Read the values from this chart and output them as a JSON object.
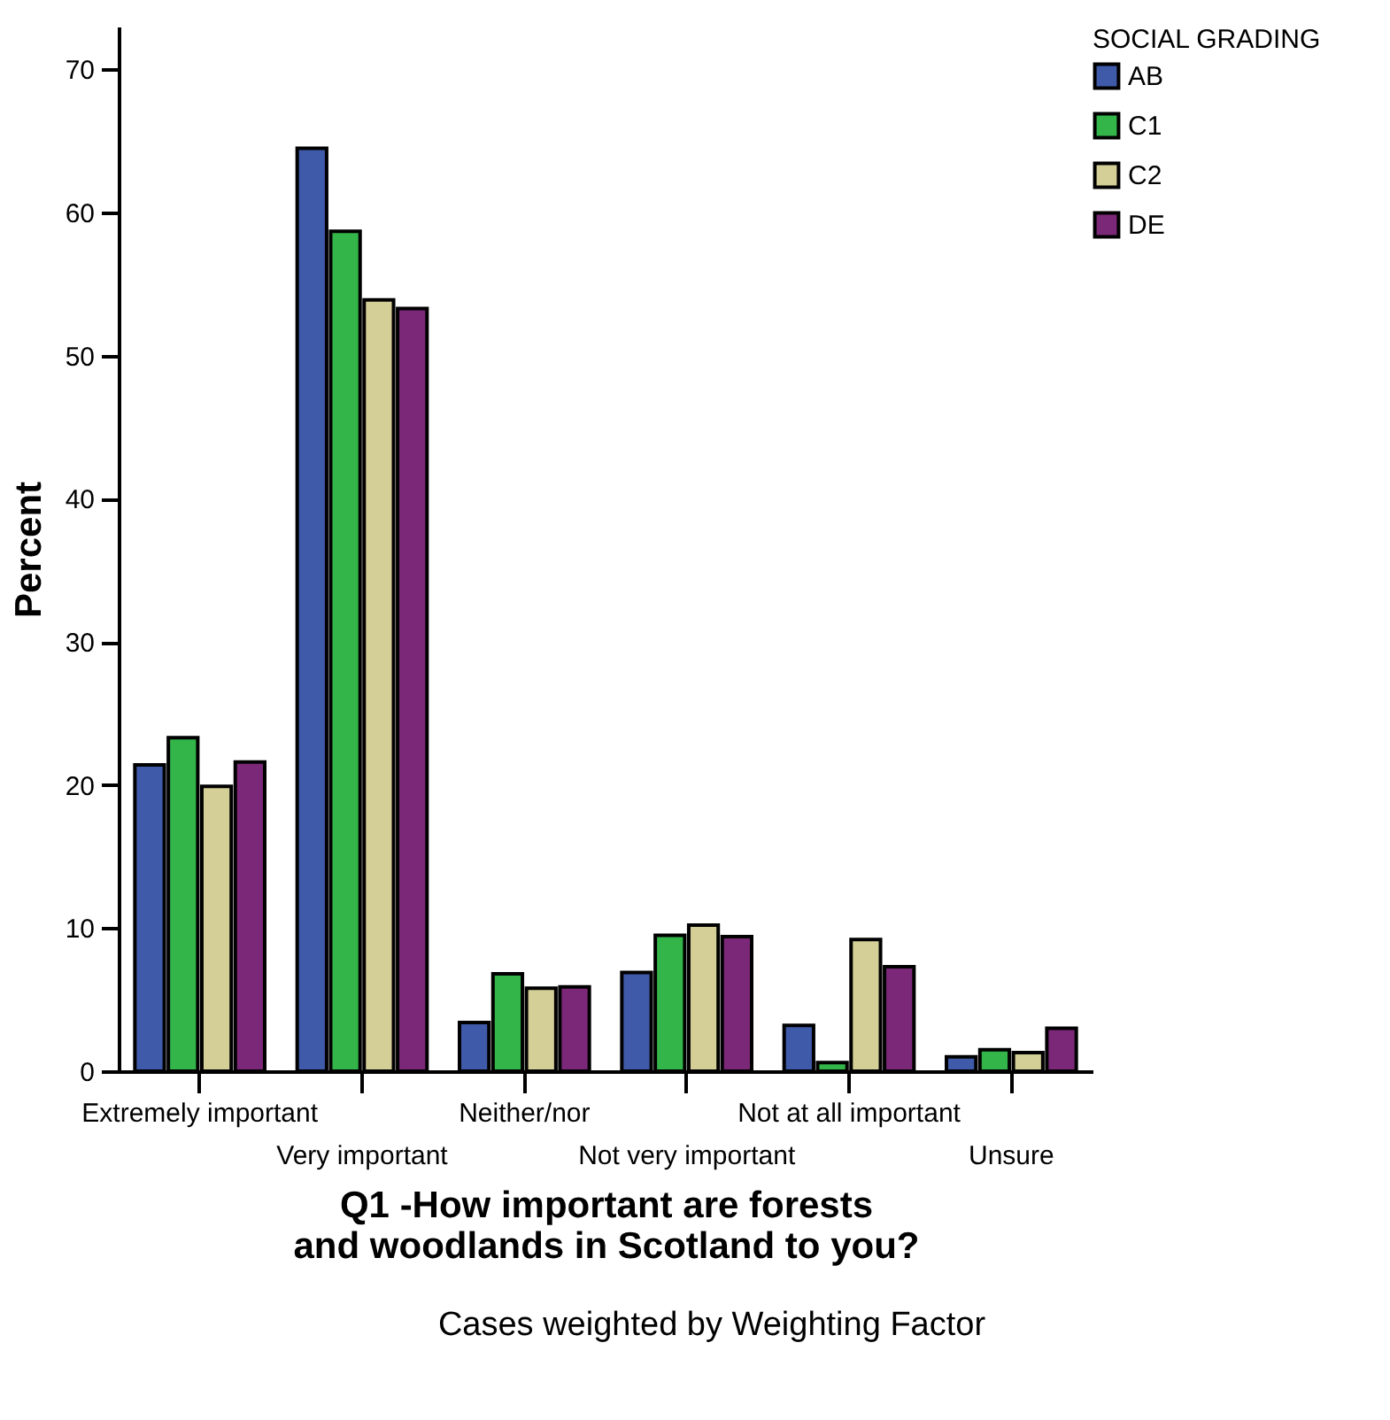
{
  "chart_data": {
    "type": "bar",
    "xlabel": "Q1 -How important are forests and woodlands in Scotland to you?",
    "ylabel": "Percent",
    "legend_title": "SOCIAL GRADING",
    "categories": [
      "Extremely important",
      "Very important",
      "Neither/nor",
      "Not very important",
      "Not at all important",
      "Unsure"
    ],
    "series": [
      {
        "name": "AB",
        "color": "#3f5aa8",
        "values": [
          21.4,
          64.5,
          3.4,
          6.9,
          3.2,
          1.0
        ]
      },
      {
        "name": "C1",
        "color": "#33b54a",
        "values": [
          23.3,
          58.7,
          6.8,
          9.5,
          0.6,
          1.5
        ]
      },
      {
        "name": "C2",
        "color": "#d4cf97",
        "values": [
          19.9,
          53.9,
          5.8,
          10.2,
          9.2,
          1.3
        ]
      },
      {
        "name": "DE",
        "color": "#7b2878",
        "values": [
          21.6,
          53.3,
          5.9,
          9.4,
          7.3,
          3.0
        ]
      }
    ],
    "ylim": [
      0,
      73
    ],
    "yticks": [
      0,
      10,
      20,
      30,
      40,
      50,
      60,
      70
    ],
    "grid": false,
    "legend": "top right",
    "annotations": [
      "Cases weighted by Weighting Factor"
    ]
  }
}
